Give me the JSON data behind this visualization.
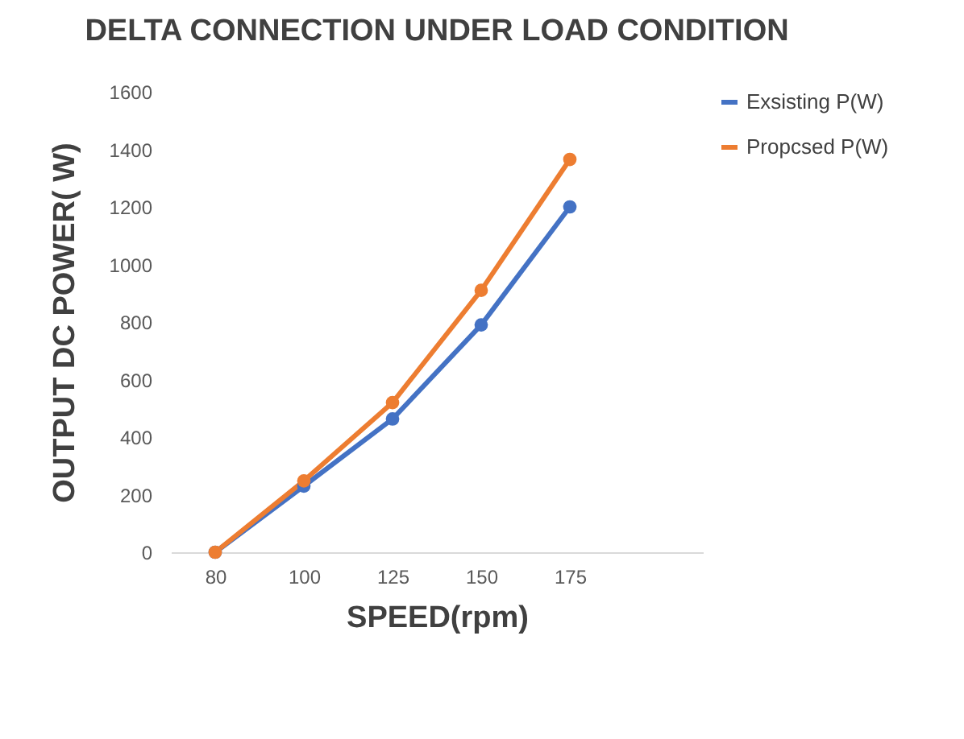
{
  "chart_data": {
    "type": "line",
    "title": "DELTA CONNECTION UNDER LOAD CONDITION",
    "xlabel": "SPEED(rpm)",
    "ylabel": "OUTPUT DC POWER( W)",
    "categories": [
      "80",
      "100",
      "125",
      "150",
      "175",
      null
    ],
    "series": [
      {
        "name": "Exsisting P(W)",
        "color": "#4472c4",
        "values": [
          0,
          230,
          463,
          790,
          1200,
          null
        ]
      },
      {
        "name": "Propcsed P(W)",
        "color": "#ed7d31",
        "values": [
          0,
          248,
          520,
          910,
          1365,
          null
        ]
      }
    ],
    "ylim": [
      0,
      1600
    ],
    "yticks": [
      0,
      200,
      400,
      600,
      800,
      1000,
      1200,
      1400,
      1600
    ],
    "grid": false,
    "legend": "right",
    "marker": "circle"
  }
}
